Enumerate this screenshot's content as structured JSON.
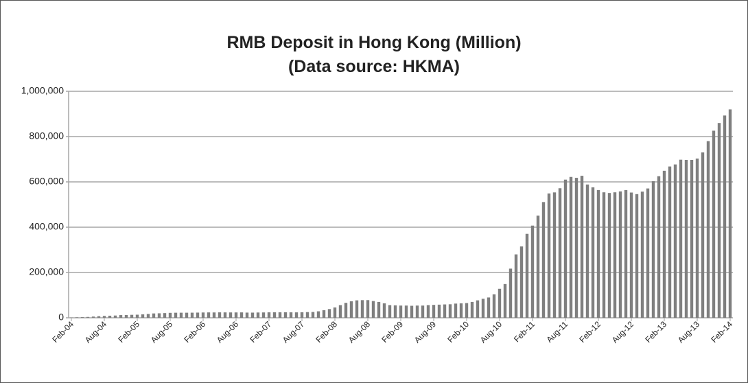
{
  "chart_data": {
    "type": "bar",
    "title": "RMB Deposit in Hong Kong (Million)",
    "subtitle": "(Data source: HKMA)",
    "color": "#7f7f7f",
    "grid": true,
    "ylim": [
      0,
      1000000
    ],
    "yticks": [
      0,
      {
        "value": 200000,
        "label": "200,000"
      },
      {
        "value": 400000,
        "label": "400,000"
      },
      {
        "value": 600000,
        "label": "600,000"
      },
      {
        "value": 800000,
        "label": "800,000"
      },
      {
        "value": 1000000,
        "label": "1,000,000"
      }
    ],
    "categories": [
      "Feb-04",
      null,
      null,
      null,
      null,
      null,
      "Aug-04",
      null,
      null,
      null,
      null,
      null,
      "Feb-05",
      null,
      null,
      null,
      null,
      null,
      "Aug-05",
      null,
      null,
      null,
      null,
      null,
      "Feb-06",
      null,
      null,
      null,
      null,
      null,
      "Aug-06",
      null,
      null,
      null,
      null,
      null,
      "Feb-07",
      null,
      null,
      null,
      null,
      null,
      "Aug-07",
      null,
      null,
      null,
      null,
      null,
      "Feb-08",
      null,
      null,
      null,
      null,
      null,
      "Aug-08",
      null,
      null,
      null,
      null,
      null,
      "Feb-09",
      null,
      null,
      null,
      null,
      null,
      "Aug-09",
      null,
      null,
      null,
      null,
      null,
      "Feb-10",
      null,
      null,
      null,
      null,
      null,
      "Aug-10",
      null,
      null,
      null,
      null,
      null,
      "Feb-11",
      null,
      null,
      null,
      null,
      null,
      "Aug-11",
      null,
      null,
      null,
      null,
      null,
      "Feb-12",
      null,
      null,
      null,
      null,
      null,
      "Aug-12",
      null,
      null,
      null,
      null,
      null,
      "Feb-13",
      null,
      null,
      null,
      null,
      null,
      "Aug-13",
      null,
      null,
      null,
      null,
      null,
      "Feb-14"
    ],
    "values": [
      895,
      2177,
      2864,
      3826,
      5417,
      7097,
      8357,
      9221,
      9999,
      11950,
      12127,
      13133,
      13660,
      15120,
      16970,
      19230,
      19870,
      20760,
      21860,
      22360,
      22450,
      22400,
      22590,
      22960,
      23470,
      23800,
      23640,
      24050,
      23850,
      23680,
      23700,
      23860,
      23000,
      22840,
      23400,
      23700,
      24100,
      24300,
      24300,
      24500,
      24100,
      24000,
      24500,
      25100,
      25700,
      28600,
      33400,
      38580,
      45700,
      56000,
      66000,
      73000,
      77000,
      77900,
      78000,
      74000,
      70000,
      64000,
      56060,
      55000,
      54000,
      54000,
      53000,
      54000,
      54000,
      56000,
      57000,
      58000,
      59000,
      59700,
      62700,
      64000,
      65000,
      70000,
      77000,
      84000,
      89700,
      103700,
      128000,
      149000,
      217000,
      280000,
      315000,
      370600,
      407000,
      451000,
      511000,
      549000,
      553600,
      572000,
      610000,
      622000,
      618000,
      627000,
      588500,
      576000,
      564000,
      554000,
      551000,
      554000,
      558000,
      564000,
      553000,
      546000,
      557000,
      571000,
      603000,
      625000,
      649000,
      668000,
      677000,
      698000,
      697000,
      697000,
      703000,
      730000,
      780000,
      826000,
      860000,
      893000,
      920000
    ]
  }
}
